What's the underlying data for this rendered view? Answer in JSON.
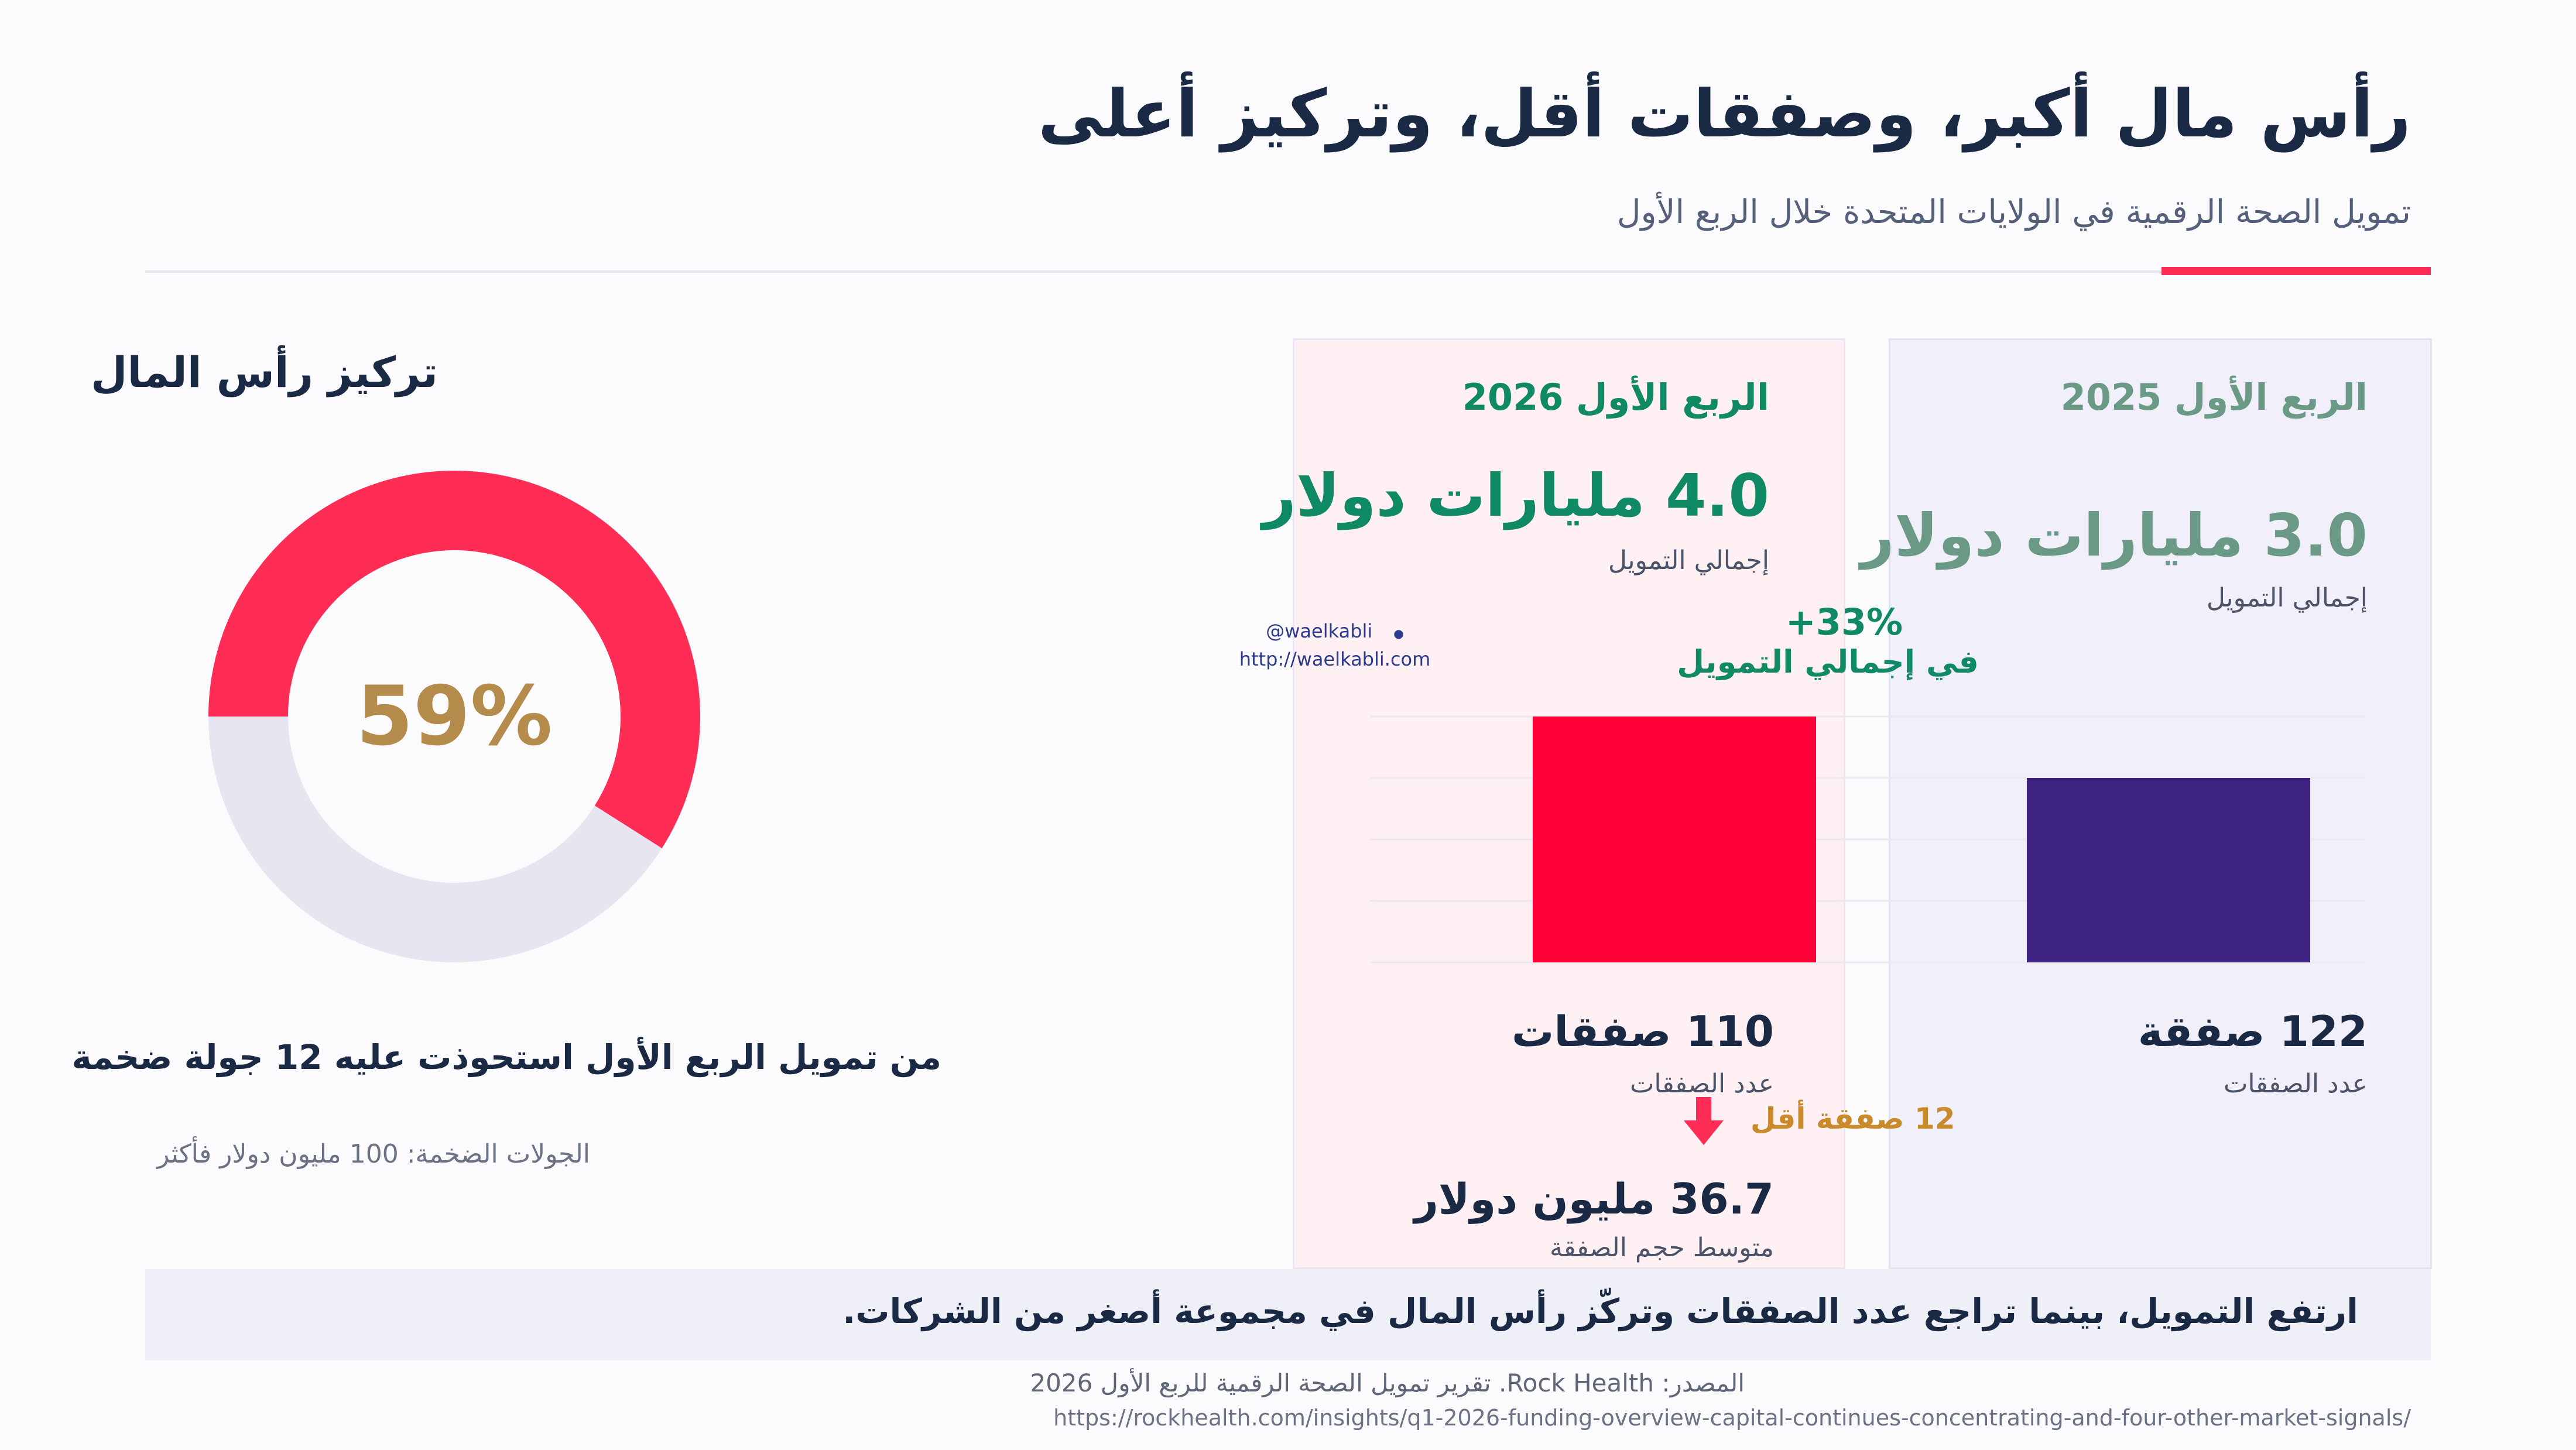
{
  "header": {
    "title": "رأس مال أكبر، وصفقات أقل، وتركيز أعلى",
    "subtitle": "تمويل الصحة الرقمية في الولايات المتحدة خلال الربع الأول"
  },
  "concentration": {
    "heading": "تركيز رأس المال",
    "value_label": "59%",
    "caption": "من تمويل الربع الأول استحوذت عليه 12 جولة ضخمة",
    "note": "الجولات الضخمة: 100 مليون دولار فأكثر"
  },
  "card_2026": {
    "quarter": "الربع الأول 2026",
    "total": "4.0 مليارات دولار",
    "total_label": "إجمالي التمويل",
    "deals": "110 صفقات",
    "deals_label": "عدد الصفقات",
    "avg": "36.7 مليون دولار",
    "avg_label": "متوسط حجم الصفقة"
  },
  "card_2025": {
    "quarter": "الربع الأول 2025",
    "total": "3.0 مليارات دولار",
    "total_label": "إجمالي التمويل",
    "deals": "122 صفقة",
    "deals_label": "عدد الصفقات"
  },
  "change": {
    "pct": "+33%",
    "label": "في إجمالي التمويل"
  },
  "deals_change": "12 صفقة أقل",
  "watermark": {
    "handle": "@waelkabli",
    "url": "http://waelkabli.com"
  },
  "takeaway": "ارتفع التمويل، بينما تراجع عدد الصفقات وتركّز رأس المال في مجموعة أصغر من الشركات.",
  "source": {
    "text": "المصدر: Rock Health. تقرير تمويل الصحة الرقمية للربع الأول 2026",
    "url": "https://rockhealth.com/insights/q1-2026-funding-overview-capital-continues-concentrating-and-four-other-market-signals/"
  },
  "colors": {
    "accent": "#ff2d55",
    "bar_2026": "#ff0037",
    "bar_2025": "#3f2380",
    "donut_track": "#e8e5f0",
    "donut_value": "#b58b4c",
    "green": "#0f8a64"
  },
  "chart_data": [
    {
      "type": "pie",
      "variant": "donut",
      "values": [
        59,
        41
      ],
      "center_label": "59%"
    },
    {
      "type": "bar",
      "categories": [
        "الربع الأول 2026",
        "الربع الأول 2025"
      ],
      "values": [
        4.0,
        3.0
      ],
      "unit": "مليارات دولار",
      "ylim": [
        0,
        4.0
      ],
      "grid": true
    }
  ]
}
